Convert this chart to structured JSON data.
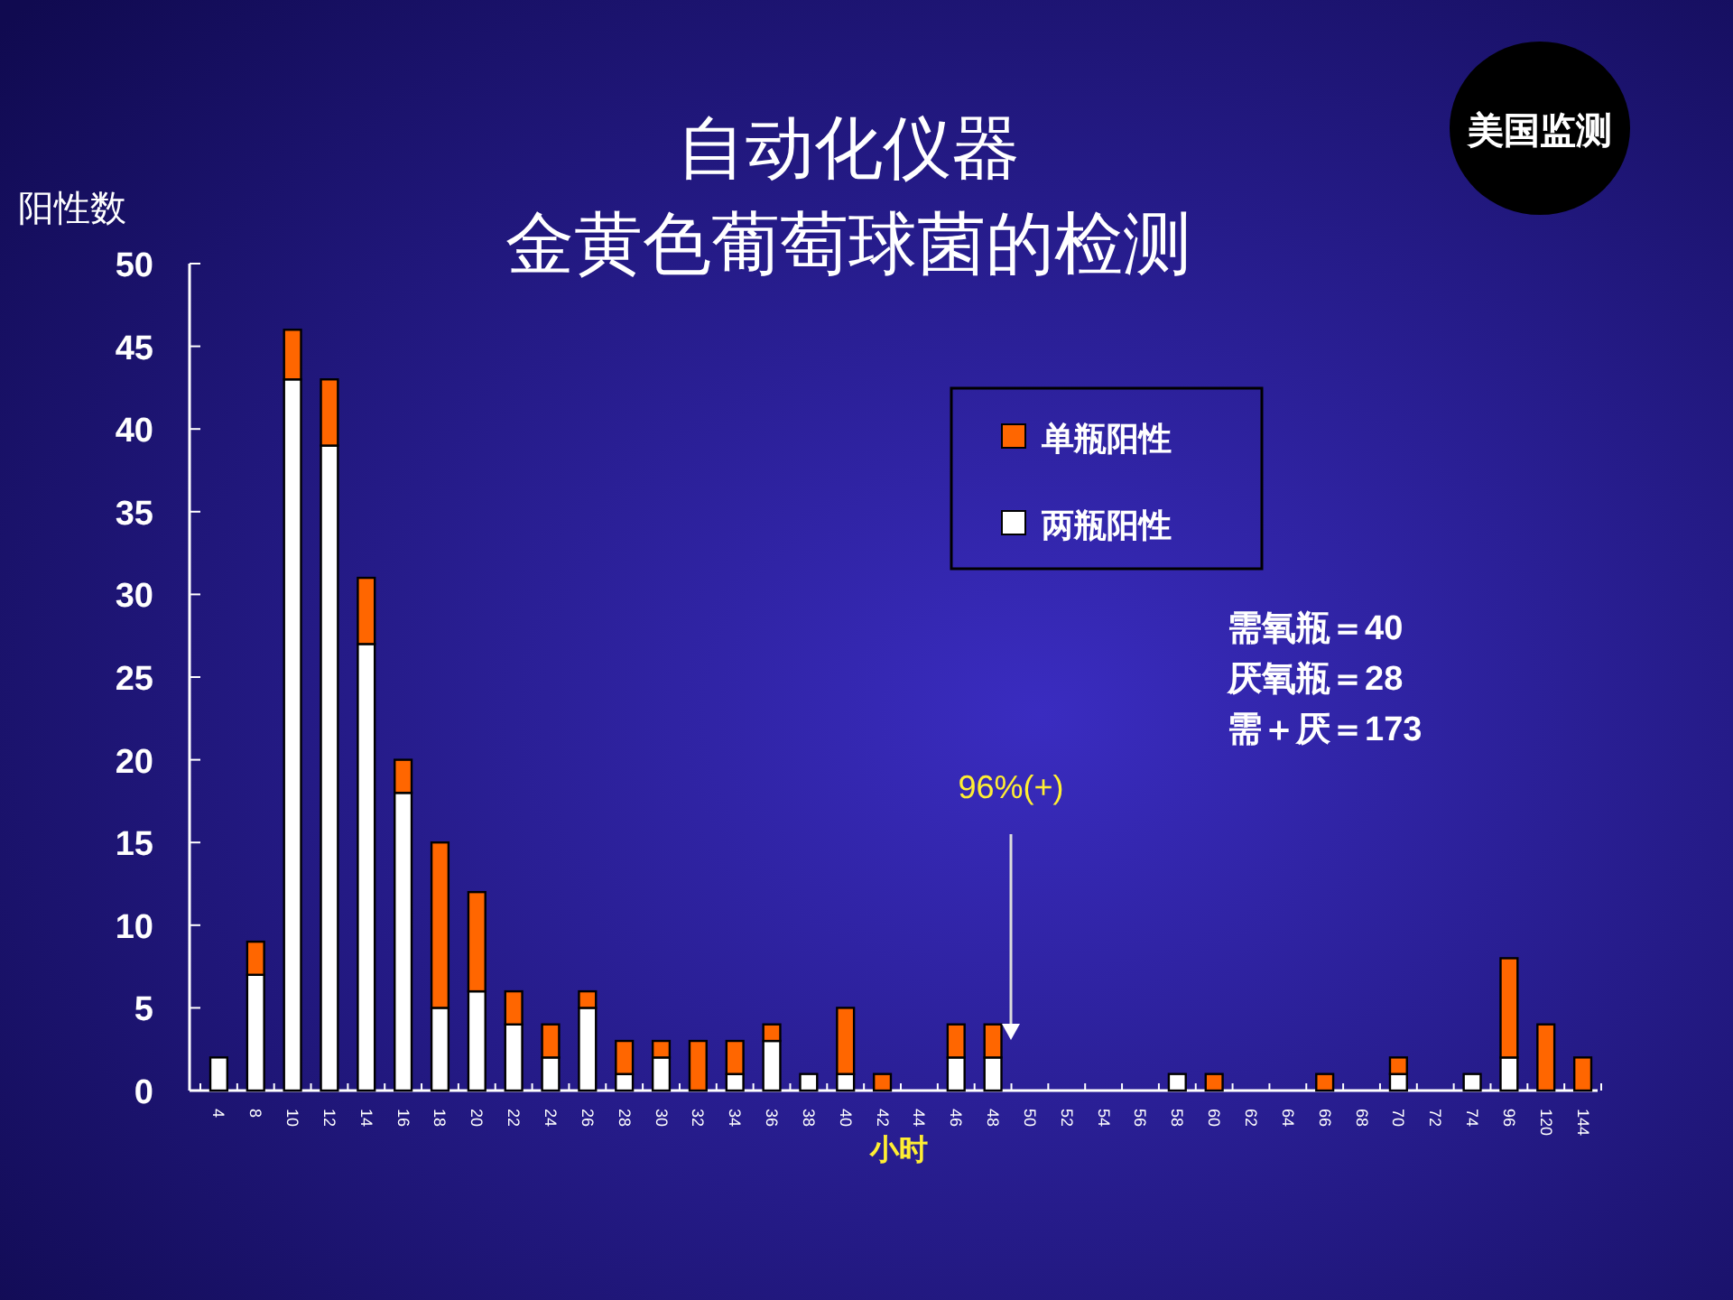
{
  "chart_data": {
    "type": "bar",
    "title": "自动化仪器",
    "subtitle": "金黄色葡萄球菌的检测",
    "xlabel": "小时",
    "ylabel": "阳性数",
    "categories": [
      "4",
      "8",
      "10",
      "12",
      "14",
      "16",
      "18",
      "20",
      "22",
      "24",
      "26",
      "28",
      "30",
      "32",
      "34",
      "36",
      "38",
      "40",
      "42",
      "44",
      "46",
      "48",
      "50",
      "52",
      "54",
      "56",
      "58",
      "60",
      "62",
      "64",
      "66",
      "68",
      "70",
      "72",
      "74",
      "96",
      "120",
      "144"
    ],
    "stacked": true,
    "series": [
      {
        "name": "两瓶阳性",
        "color": "#ffffff",
        "values": [
          2,
          7,
          43,
          39,
          27,
          18,
          5,
          6,
          4,
          2,
          5,
          1,
          2,
          0,
          1,
          3,
          1,
          1,
          0,
          0,
          2,
          2,
          0,
          0,
          0,
          0,
          1,
          0,
          0,
          0,
          0,
          0,
          1,
          0,
          1,
          2,
          0,
          0
        ]
      },
      {
        "name": "单瓶阳性",
        "color": "#ff6600",
        "values": [
          0,
          2,
          3,
          4,
          4,
          2,
          10,
          6,
          2,
          2,
          1,
          2,
          1,
          3,
          2,
          1,
          0,
          4,
          1,
          0,
          2,
          2,
          0,
          0,
          0,
          0,
          0,
          1,
          0,
          0,
          1,
          0,
          1,
          0,
          0,
          6,
          4,
          2
        ]
      }
    ],
    "ylim": [
      0,
      50
    ],
    "yticks": [
      0,
      5,
      10,
      15,
      20,
      25,
      30,
      35,
      40,
      45,
      50
    ],
    "legend": "top right",
    "grid": false,
    "annotations": [
      "96%(+)",
      "需氧瓶＝40",
      "厌氧瓶＝28",
      "需＋厌＝173",
      "美国监测"
    ]
  }
}
